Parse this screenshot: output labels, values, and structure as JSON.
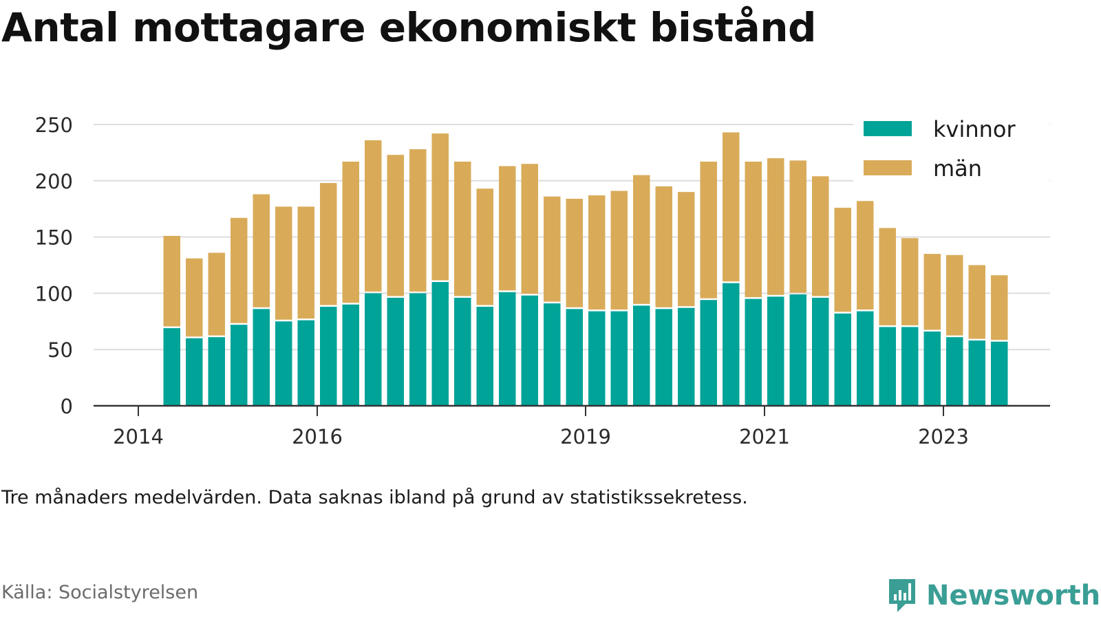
{
  "title": "Antal mottagare ekonomiskt bistånd",
  "note": "Tre månaders medelvärden. Data saknas ibland på grund av statistikssekretess.",
  "source": "Källa: Socialstyrelsen",
  "brand": {
    "name": "Newsworthy",
    "icon": "newsworthy-logo-icon",
    "color": "#3a9e95"
  },
  "colors": {
    "kvinnor": "#00a398",
    "man": "#d9ab59",
    "grid": "#dddddd",
    "axis": "#333333"
  },
  "chart_data": {
    "type": "bar",
    "stacked": true,
    "x_ticks": [
      "2014",
      "2016",
      "2019",
      "2021",
      "2023"
    ],
    "y_ticks": [
      0,
      50,
      100,
      150,
      200,
      250
    ],
    "ylim": [
      0,
      250
    ],
    "grid": true,
    "legend_position": "top-right",
    "x": [
      "2014-Q2",
      "2014-Q3",
      "2014-Q4",
      "2015-Q1",
      "2015-Q2",
      "2015-Q3",
      "2015-Q4",
      "2016-Q1",
      "2016-Q2",
      "2016-Q3",
      "2016-Q4",
      "2017-Q1",
      "2017-Q2",
      "2017-Q3",
      "2017-Q4",
      "2018-Q1",
      "2018-Q2",
      "2018-Q3",
      "2018-Q4",
      "2019-Q1",
      "2019-Q2",
      "2019-Q3",
      "2019-Q4",
      "2020-Q1",
      "2020-Q2",
      "2020-Q3",
      "2020-Q4",
      "2021-Q1",
      "2021-Q2",
      "2021-Q3",
      "2021-Q4",
      "2022-Q1",
      "2022-Q2",
      "2022-Q3",
      "2022-Q4",
      "2023-Q1",
      "2023-Q2",
      "2023-Q3"
    ],
    "series": [
      {
        "name": "kvinnor",
        "values": [
          69,
          60,
          61,
          72,
          86,
          75,
          76,
          88,
          90,
          100,
          96,
          100,
          110,
          96,
          88,
          101,
          98,
          91,
          86,
          84,
          84,
          89,
          86,
          87,
          94,
          109,
          95,
          97,
          99,
          96,
          82,
          84,
          70,
          70,
          66,
          61,
          58,
          57
        ]
      },
      {
        "name": "män",
        "values": [
          82,
          71,
          75,
          95,
          102,
          102,
          101,
          110,
          127,
          136,
          127,
          128,
          132,
          121,
          105,
          112,
          117,
          95,
          98,
          103,
          107,
          116,
          109,
          103,
          123,
          134,
          122,
          123,
          119,
          108,
          94,
          98,
          88,
          79,
          69,
          73,
          67,
          59
        ]
      }
    ]
  }
}
